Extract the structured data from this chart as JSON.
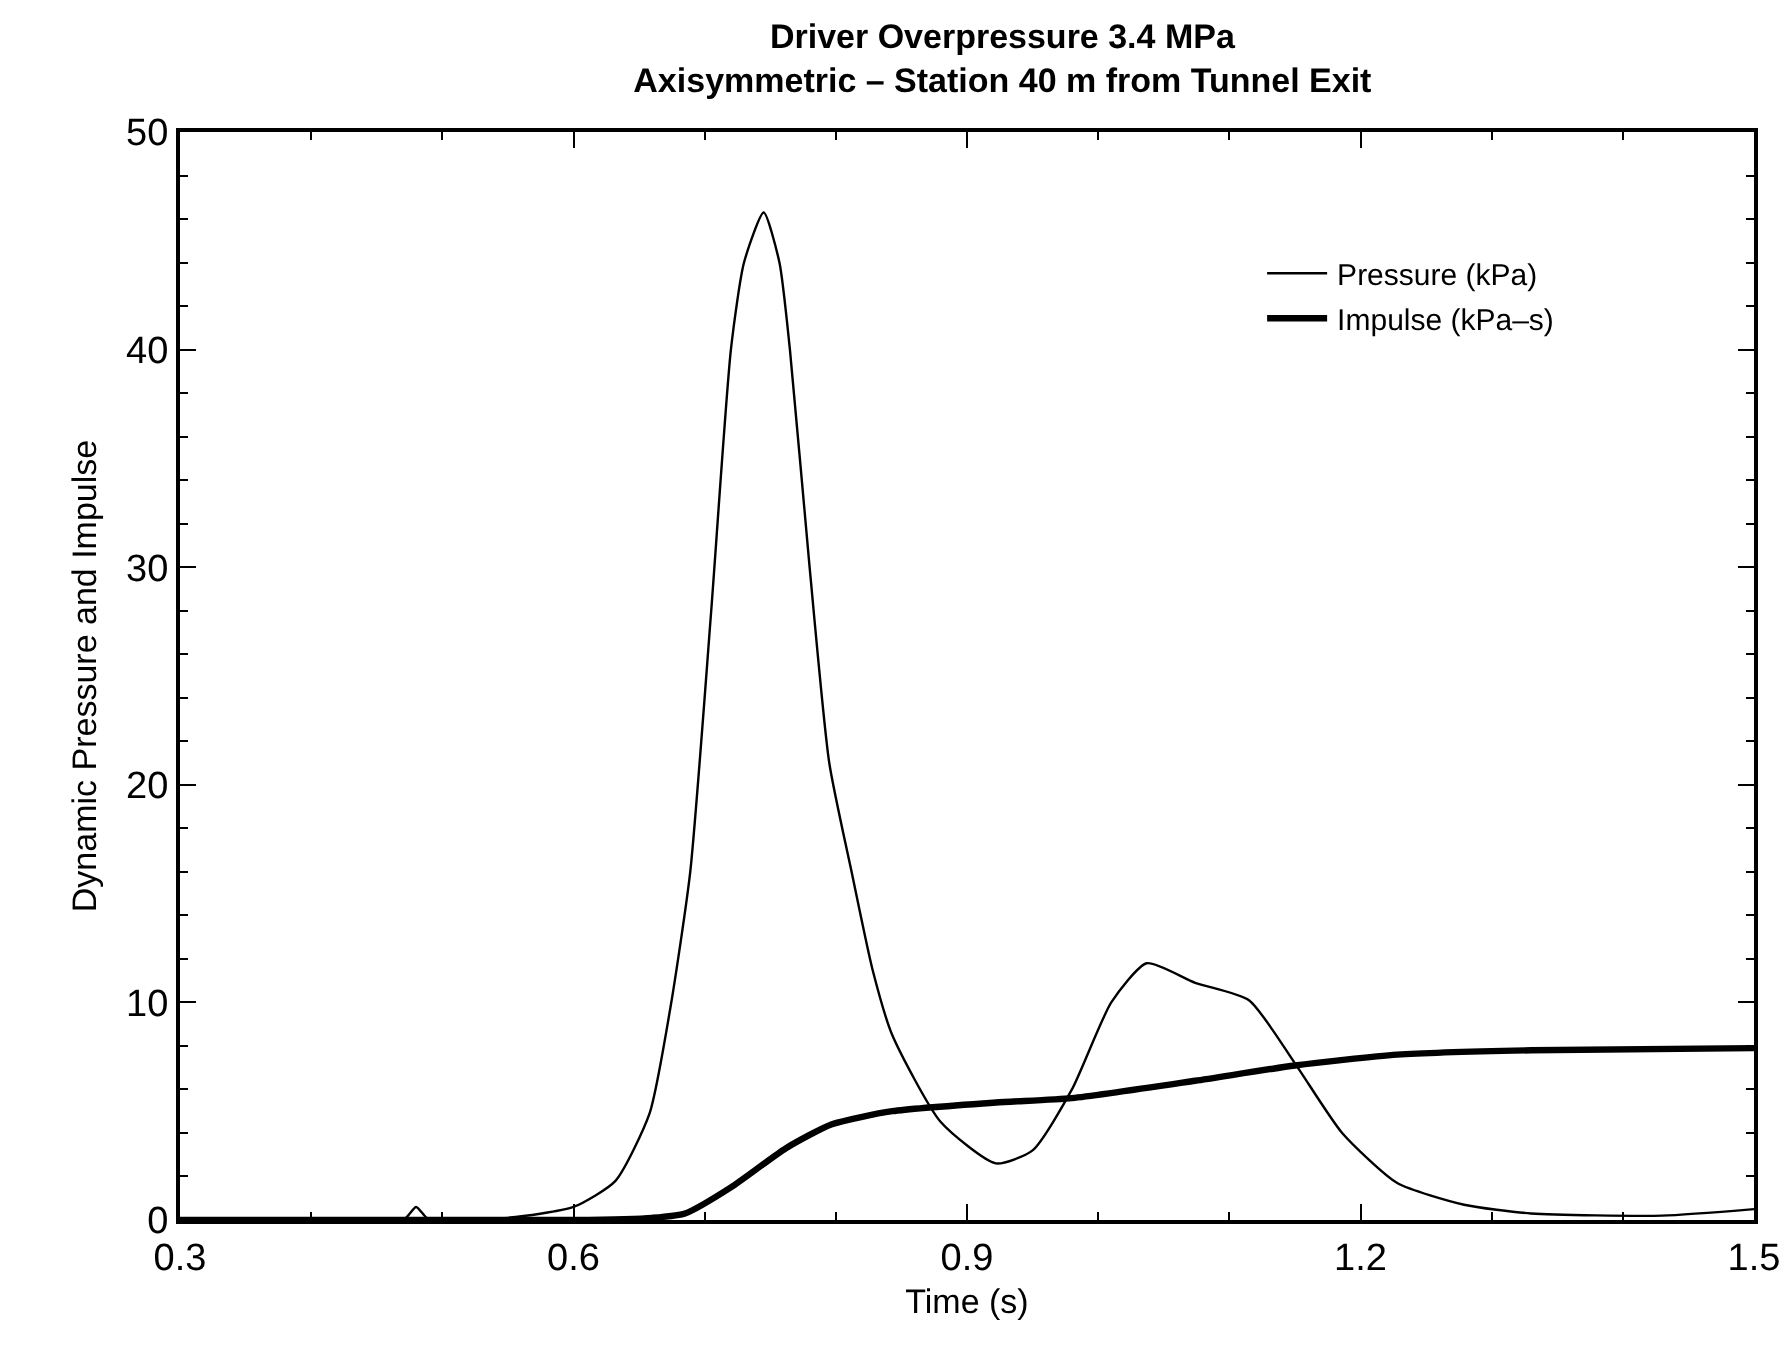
{
  "chart_data": {
    "type": "line",
    "title": "Driver Overpressure 3.4 MPa",
    "subtitle": "Axisymmetric – Station 40 m from Tunnel Exit",
    "xlabel": "Time (s)",
    "ylabel": "Dynamic Pressure and Impulse",
    "series": [
      {
        "name": "Pressure (kPa)",
        "color": "#000000",
        "x": [
          0.3,
          0.47,
          0.48,
          0.49,
          0.55,
          0.6,
          0.632,
          0.658,
          0.674,
          0.689,
          0.705,
          0.72,
          0.73,
          0.745,
          0.757,
          0.765,
          0.78,
          0.795,
          0.812,
          0.828,
          0.843,
          0.88,
          0.922,
          0.95,
          0.98,
          1.01,
          1.037,
          1.074,
          1.115,
          1.15,
          1.186,
          1.228,
          1.279,
          1.33,
          1.43,
          1.5
        ],
        "values": [
          0,
          0,
          0.6,
          0,
          0.1,
          0.6,
          1.8,
          4.9,
          9.8,
          16,
          28,
          40,
          44,
          46.3,
          44,
          40,
          30,
          21,
          16,
          11.5,
          8.5,
          4.5,
          2.6,
          3.2,
          6,
          10,
          11.8,
          10.9,
          10.1,
          7.2,
          4,
          1.7,
          0.7,
          0.3,
          0.2,
          0.5
        ]
      },
      {
        "name": "Impulse (kPa–s)",
        "color": "#000000",
        "x": [
          0.3,
          0.6,
          0.66,
          0.685,
          0.72,
          0.762,
          0.797,
          0.843,
          0.922,
          0.98,
          1.074,
          1.15,
          1.228,
          1.33,
          1.5
        ],
        "values": [
          0,
          0,
          0.1,
          0.3,
          1.5,
          3.3,
          4.4,
          5,
          5.4,
          5.6,
          6.4,
          7.1,
          7.6,
          7.8,
          7.9
        ]
      }
    ],
    "xlim": [
      0.3,
      1.5
    ],
    "xticks": [
      0.3,
      0.6,
      0.9,
      1.2,
      1.5
    ],
    "ylim": [
      0,
      50
    ],
    "yticks": [
      0,
      10,
      20,
      30,
      40,
      50
    ],
    "grid": false,
    "legend": "top right",
    "marker": "none",
    "line_style": "solid"
  }
}
